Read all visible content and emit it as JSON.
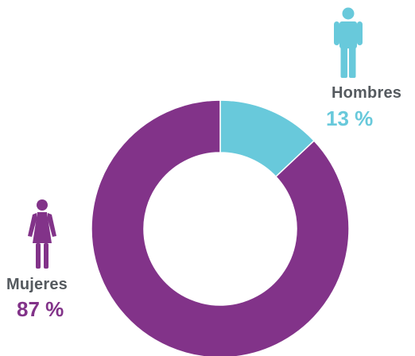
{
  "colors": {
    "men": "#68c9db",
    "women": "#823389",
    "label_text": "#555a5f"
  },
  "labels": {
    "men": {
      "name": "Hombres",
      "percent": "13 %",
      "icon": "man-icon"
    },
    "women": {
      "name": "Mujeres",
      "percent": "87 %",
      "icon": "woman-icon"
    }
  },
  "chart_data": {
    "type": "pie",
    "variant": "donut",
    "title": "",
    "categories": [
      "Hombres",
      "Mujeres"
    ],
    "values": [
      13,
      87
    ],
    "unit": "%",
    "start_angle": "12 o'clock",
    "direction": "clockwise",
    "legend": "none (direct labels with person icons)"
  }
}
